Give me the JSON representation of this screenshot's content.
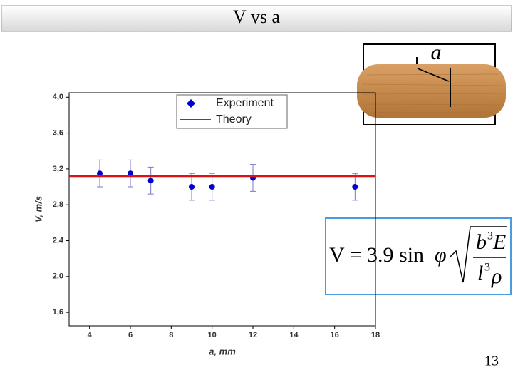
{
  "slide_title": "V vs a",
  "page_number": "13",
  "diagram_label": "a",
  "formula": {
    "lhs": "V = 3.9 sin",
    "phi": "φ",
    "num_base": "b",
    "num_exp": "3",
    "num_rest": "E",
    "den_base": "l",
    "den_exp": "3",
    "den_rest": "ρ"
  },
  "chart_data": {
    "type": "scatter",
    "xlabel": "a, mm",
    "ylabel": "V, m/s",
    "xlim": [
      3,
      18
    ],
    "xticks": [
      4,
      6,
      8,
      10,
      12,
      14,
      16,
      18
    ],
    "ylim": [
      1.45,
      4.05
    ],
    "yticks": [
      {
        "value": 1.6,
        "label": "1,6"
      },
      {
        "value": 2.0,
        "label": "2,0"
      },
      {
        "value": 2.4,
        "label": "2,4"
      },
      {
        "value": 2.8,
        "label": "2,8"
      },
      {
        "value": 3.2,
        "label": "3,2"
      },
      {
        "value": 3.6,
        "label": "3,6"
      },
      {
        "value": 4.0,
        "label": "4,0"
      }
    ],
    "legend": "upper right",
    "series": [
      {
        "name": "Experiment",
        "color": "#0000cc",
        "x": [
          4.5,
          6,
          7,
          9,
          10,
          12,
          17
        ],
        "values": [
          3.15,
          3.15,
          3.07,
          3.0,
          3.0,
          3.1,
          3.0
        ],
        "errors": [
          0.15,
          0.15,
          0.15,
          0.15,
          0.15,
          0.15,
          0.15
        ],
        "error_color": "#7777cc"
      },
      {
        "name": "Theory",
        "color": "#dd1111",
        "x": [
          3,
          18
        ],
        "values": [
          3.12,
          3.12
        ]
      }
    ]
  }
}
